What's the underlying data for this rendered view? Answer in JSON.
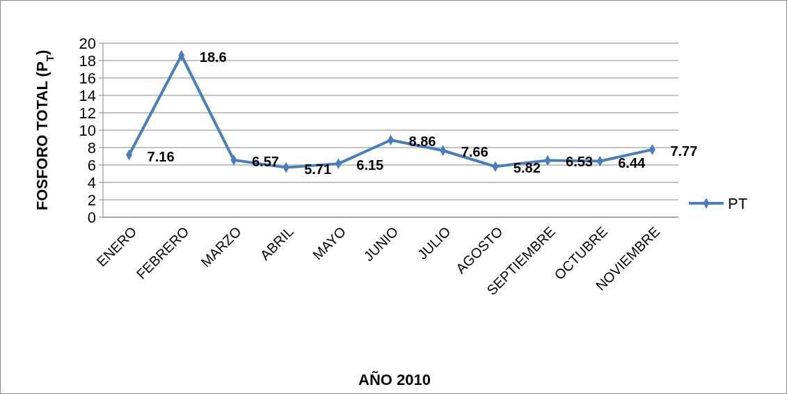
{
  "chart_data": {
    "type": "line",
    "ylabel": "FOSFORO TOTAL (P$_{T}$)",
    "xlabel": "AÑO 2010",
    "categories": [
      "ENERO",
      "FEBRERO",
      "MARZO",
      "ABRIL",
      "MAYO",
      "JUNIO",
      "JULIO",
      "AGOSTO",
      "SEPTIEMBRE",
      "OCTUBRE",
      "NOVIEMBRE"
    ],
    "series": [
      {
        "name": "PT",
        "color": "#4a7ebb",
        "values": [
          7.16,
          18.6,
          6.57,
          5.71,
          6.15,
          8.86,
          7.66,
          5.82,
          6.53,
          6.44,
          7.77
        ]
      }
    ],
    "ylim": [
      0,
      20
    ],
    "yticks": [
      0,
      2,
      4,
      6,
      8,
      10,
      12,
      14,
      16,
      18,
      20
    ],
    "grid": "y",
    "legend": "right",
    "marker": "diamond",
    "line_style": "solid",
    "data_labels": true
  }
}
